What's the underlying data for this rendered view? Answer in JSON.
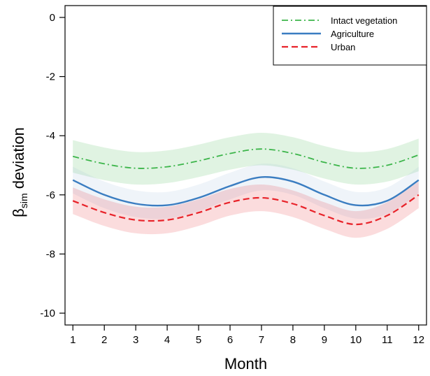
{
  "chart_data": {
    "type": "line",
    "title": "",
    "xlabel": "Month",
    "ylabel": {
      "symbol": "β",
      "subscript": "sim",
      "rest": " deviation"
    },
    "xlim": [
      0.75,
      12.25
    ],
    "ylim": [
      -10.4,
      0.4
    ],
    "x_ticks": [
      1,
      2,
      3,
      4,
      5,
      6,
      7,
      8,
      9,
      10,
      11,
      12
    ],
    "y_ticks": [
      0,
      -2,
      -4,
      -6,
      -8,
      -10
    ],
    "legend_position": "top-right",
    "grid": false,
    "x": [
      1,
      2,
      3,
      4,
      5,
      6,
      7,
      8,
      9,
      10,
      11,
      12
    ],
    "series": [
      {
        "name": "Intact vegetation",
        "color": "#3cb54a",
        "band_color": "#3cb54a",
        "line_style": "dash-dot",
        "values": [
          -4.7,
          -4.95,
          -5.1,
          -5.05,
          -4.85,
          -4.6,
          -4.45,
          -4.6,
          -4.9,
          -5.1,
          -5.0,
          -4.65
        ],
        "lower": [
          -5.25,
          -5.5,
          -5.65,
          -5.6,
          -5.4,
          -5.15,
          -5.0,
          -5.15,
          -5.45,
          -5.65,
          -5.55,
          -5.2
        ],
        "upper": [
          -4.15,
          -4.4,
          -4.55,
          -4.5,
          -4.3,
          -4.05,
          -3.9,
          -4.05,
          -4.35,
          -4.55,
          -4.45,
          -4.1
        ]
      },
      {
        "name": "Agriculture",
        "color": "#3a7dc1",
        "band_color": "#9ab8dc",
        "line_style": "solid",
        "values": [
          -5.5,
          -6.0,
          -6.3,
          -6.35,
          -6.1,
          -5.7,
          -5.4,
          -5.55,
          -6.0,
          -6.35,
          -6.2,
          -5.5
        ],
        "lower": [
          -5.95,
          -6.45,
          -6.75,
          -6.8,
          -6.55,
          -6.15,
          -5.85,
          -6.0,
          -6.45,
          -6.8,
          -6.65,
          -5.95
        ],
        "upper": [
          -5.05,
          -5.55,
          -5.85,
          -5.9,
          -5.65,
          -5.25,
          -4.95,
          -5.1,
          -5.55,
          -5.9,
          -5.75,
          -5.05
        ]
      },
      {
        "name": "Urban",
        "color": "#e8232a",
        "band_color": "#e8232a",
        "line_style": "dashed",
        "values": [
          -6.2,
          -6.6,
          -6.85,
          -6.85,
          -6.6,
          -6.25,
          -6.1,
          -6.3,
          -6.7,
          -7.0,
          -6.7,
          -6.0
        ],
        "lower": [
          -6.65,
          -7.05,
          -7.3,
          -7.3,
          -7.05,
          -6.7,
          -6.55,
          -6.75,
          -7.15,
          -7.45,
          -7.15,
          -6.45
        ],
        "upper": [
          -5.75,
          -6.15,
          -6.4,
          -6.4,
          -6.15,
          -5.8,
          -5.65,
          -5.85,
          -6.25,
          -6.55,
          -6.25,
          -5.55
        ]
      }
    ]
  }
}
